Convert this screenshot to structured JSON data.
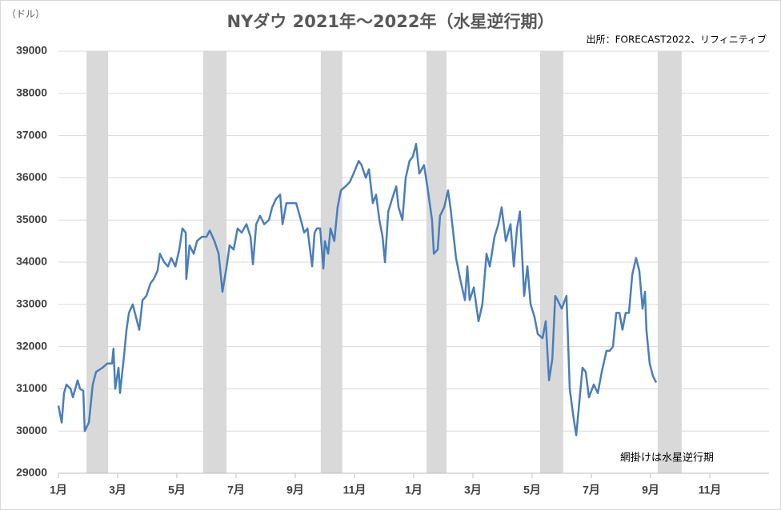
{
  "chart_data": {
    "type": "line",
    "title": "NYダウ  2021年～2022年（水星逆行期）",
    "y_unit": "（ドル）",
    "source": "出所：FORECAST2022、リフィニティブ",
    "annotation": "網掛けは水星逆行期",
    "xlim": [
      0,
      24
    ],
    "xticks": [
      {
        "value": 0,
        "label": "1月"
      },
      {
        "value": 2,
        "label": "3月"
      },
      {
        "value": 4,
        "label": "5月"
      },
      {
        "value": 6,
        "label": "7月"
      },
      {
        "value": 8,
        "label": "9月"
      },
      {
        "value": 10,
        "label": "11月"
      },
      {
        "value": 12,
        "label": "1月"
      },
      {
        "value": 14,
        "label": "3月"
      },
      {
        "value": 16,
        "label": "5月"
      },
      {
        "value": 18,
        "label": "7月"
      },
      {
        "value": 20,
        "label": "9月"
      },
      {
        "value": 22,
        "label": "11月"
      }
    ],
    "ylim": [
      29000,
      39000
    ],
    "yticks": [
      29000,
      30000,
      31000,
      32000,
      33000,
      34000,
      35000,
      36000,
      37000,
      38000,
      39000
    ],
    "grid": true,
    "shade_color": "#d9d9d9",
    "shaded_ranges": [
      [
        0.95,
        1.68
      ],
      [
        4.89,
        5.68
      ],
      [
        8.86,
        9.59
      ],
      [
        12.43,
        13.11
      ],
      [
        16.27,
        17.05
      ],
      [
        20.24,
        21.05
      ]
    ],
    "series": [
      {
        "color": "#4a7ebb",
        "x": [
          0,
          0.11,
          0.19,
          0.27,
          0.41,
          0.49,
          0.65,
          0.73,
          0.84,
          0.89,
          1.03,
          1.16,
          1.27,
          1.49,
          1.65,
          1.81,
          1.86,
          1.92,
          2.03,
          2.08,
          2.22,
          2.3,
          2.38,
          2.51,
          2.62,
          2.73,
          2.84,
          2.97,
          3.11,
          3.22,
          3.35,
          3.43,
          3.57,
          3.7,
          3.81,
          3.95,
          4.08,
          4.19,
          4.3,
          4.32,
          4.43,
          4.57,
          4.68,
          4.84,
          5.0,
          5.11,
          5.27,
          5.41,
          5.54,
          5.68,
          5.78,
          5.92,
          6.05,
          6.19,
          6.35,
          6.49,
          6.57,
          6.68,
          6.81,
          6.95,
          7.11,
          7.22,
          7.35,
          7.49,
          7.57,
          7.7,
          7.86,
          8.03,
          8.19,
          8.3,
          8.41,
          8.57,
          8.65,
          8.73,
          8.84,
          8.95,
          9.0,
          9.11,
          9.19,
          9.32,
          9.43,
          9.54,
          9.7,
          9.84,
          9.97,
          10.14,
          10.24,
          10.38,
          10.49,
          10.62,
          10.73,
          10.84,
          10.95,
          11.03,
          11.14,
          11.27,
          11.41,
          11.49,
          11.62,
          11.73,
          11.86,
          11.97,
          12.08,
          12.19,
          12.35,
          12.46,
          12.62,
          12.68,
          12.81,
          12.89,
          13.03,
          13.16,
          13.24,
          13.32,
          13.43,
          13.57,
          13.73,
          13.81,
          13.89,
          14.03,
          14.19,
          14.32,
          14.46,
          14.57,
          14.73,
          14.86,
          14.97,
          15.11,
          15.27,
          15.38,
          15.49,
          15.59,
          15.73,
          15.84,
          15.95,
          16.08,
          16.19,
          16.35,
          16.46,
          16.57,
          16.68,
          16.78,
          16.86,
          17.0,
          17.16,
          17.27,
          17.38,
          17.49,
          17.57,
          17.7,
          17.81,
          17.92,
          18.08,
          18.22,
          18.35,
          18.51,
          18.62,
          18.73,
          18.84,
          18.95,
          19.05,
          19.16,
          19.27,
          19.38,
          19.51,
          19.62,
          19.73,
          19.81,
          19.86,
          19.97,
          20.08,
          20.19
        ],
        "values": [
          30600,
          30200,
          30900,
          31100,
          31000,
          30800,
          31200,
          31000,
          30950,
          30000,
          30200,
          31100,
          31400,
          31500,
          31600,
          31600,
          31950,
          31000,
          31500,
          30900,
          31800,
          32400,
          32800,
          33000,
          32700,
          32400,
          33100,
          33200,
          33500,
          33600,
          33800,
          34200,
          34000,
          33900,
          34100,
          33900,
          34300,
          34800,
          34700,
          33600,
          34400,
          34200,
          34500,
          34600,
          34600,
          34750,
          34500,
          34200,
          33300,
          33900,
          34400,
          34300,
          34800,
          34700,
          34900,
          34600,
          33950,
          34900,
          35100,
          34900,
          35000,
          35300,
          35500,
          35600,
          34900,
          35400,
          35400,
          35400,
          35000,
          34700,
          34800,
          33900,
          34700,
          34800,
          34800,
          33850,
          34500,
          34200,
          34800,
          34500,
          35300,
          35700,
          35800,
          35900,
          36100,
          36400,
          36300,
          36000,
          36200,
          35400,
          35600,
          35000,
          34600,
          34000,
          35200,
          35500,
          35800,
          35300,
          35000,
          36000,
          36400,
          36500,
          36800,
          36100,
          36300,
          35800,
          35000,
          34200,
          34300,
          35100,
          35300,
          35700,
          35300,
          34800,
          34100,
          33600,
          33100,
          33900,
          33100,
          33400,
          32600,
          33000,
          34200,
          33900,
          34600,
          34900,
          35300,
          34500,
          34900,
          33900,
          34800,
          35200,
          33200,
          33900,
          33000,
          32700,
          32300,
          32200,
          32600,
          31200,
          31700,
          33200,
          33100,
          32900,
          33200,
          31000,
          30400,
          29900,
          30500,
          31500,
          31400,
          30800,
          31100,
          30900,
          31400,
          31900,
          31900,
          32000,
          32800,
          32800,
          32400,
          32800,
          32800,
          33700,
          34100,
          33800,
          32900,
          33300,
          32400,
          31600,
          31300,
          31150
        ]
      }
    ]
  }
}
